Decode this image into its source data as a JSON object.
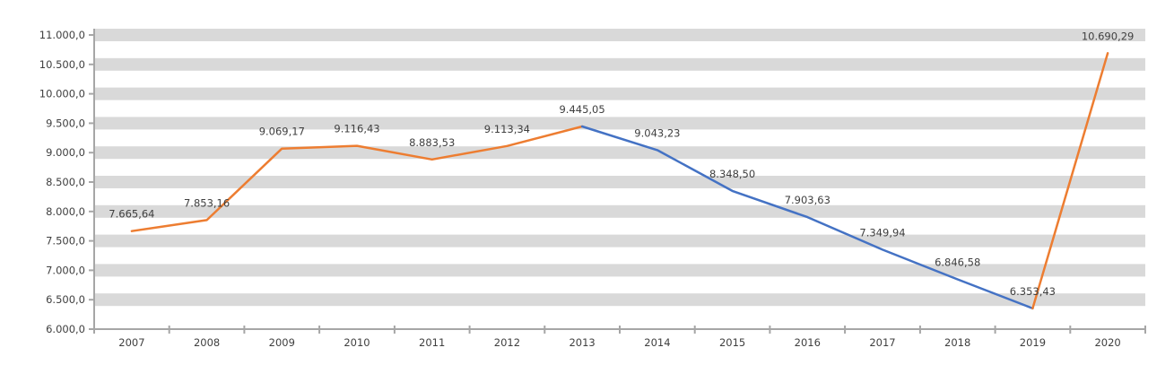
{
  "chart_data": {
    "type": "line",
    "title": "",
    "subtitle": "",
    "xlabel": "",
    "ylabel": "",
    "legend": "none",
    "grid": "horizontal-gray-bands",
    "categories": [
      "2007",
      "2008",
      "2009",
      "2010",
      "2011",
      "2012",
      "2013",
      "2014",
      "2015",
      "2016",
      "2017",
      "2018",
      "2019",
      "2020"
    ],
    "values": [
      7665.64,
      7853.16,
      9069.17,
      9116.43,
      8883.53,
      9113.34,
      9445.05,
      9043.23,
      8348.5,
      7903.63,
      7349.94,
      6846.58,
      6353.43,
      10690.29
    ],
    "point_labels": [
      "7.665,64",
      "7.853,16",
      "9.069,17",
      "9.116,43",
      "8.883,53",
      "9.113,34",
      "9.445,05",
      "9.043,23",
      "8.348,50",
      "7.903,63",
      "7.349,94",
      "6.846,58",
      "6.353,43",
      "10.690,29"
    ],
    "segments": [
      {
        "name": "segment-orange-2007-2013",
        "color": "#ED7D31",
        "from_index": 0,
        "to_index": 6
      },
      {
        "name": "segment-blue-2013-2019",
        "color": "#4472C4",
        "from_index": 6,
        "to_index": 12
      },
      {
        "name": "segment-orange-2019-2020",
        "color": "#ED7D31",
        "from_index": 12,
        "to_index": 13
      }
    ],
    "y_axis": {
      "min": 6000,
      "max": 11000,
      "step": 500,
      "tick_labels": [
        "11.000,0",
        "10.500,0",
        "10.000,0",
        "9.500,0",
        "9.000,0",
        "8.500,0",
        "8.000,0",
        "7.500,0",
        "7.000,0",
        "6.500,0",
        "6.000,0"
      ]
    },
    "colors": {
      "band": "#D9D9D9",
      "axis": "#A6A6A6",
      "text": "#3F3F3F",
      "background": "#FFFFFF"
    }
  }
}
